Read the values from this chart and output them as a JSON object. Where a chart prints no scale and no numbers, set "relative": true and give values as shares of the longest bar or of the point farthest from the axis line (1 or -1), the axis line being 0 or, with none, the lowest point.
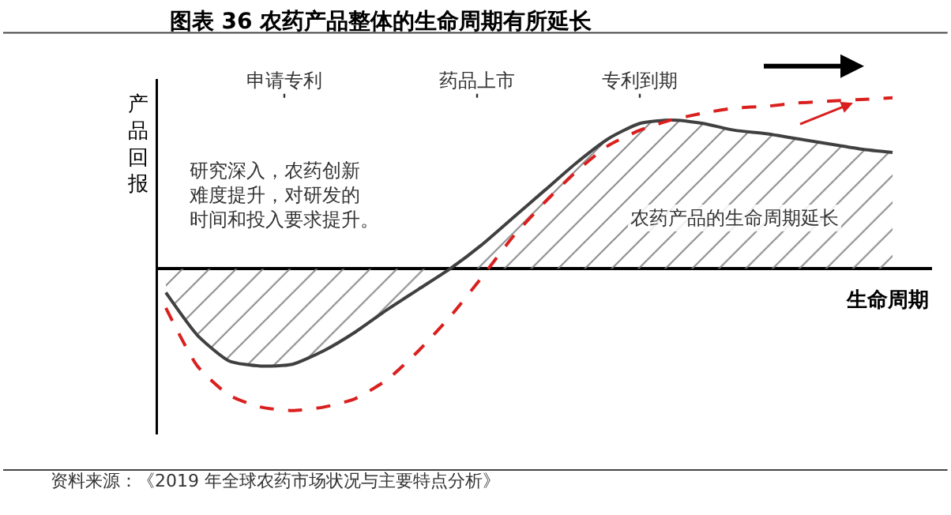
{
  "chart_data": {
    "type": "line",
    "title": "图表 36 农药产品整体的生命周期有所延长",
    "xlabel": "生命周期",
    "ylabel": "产品回报",
    "relative": true,
    "legend": false,
    "grid": false,
    "marker": "none",
    "categories": [
      null,
      null,
      null,
      null,
      null,
      null,
      null,
      null,
      null,
      null,
      null,
      null,
      null,
      null,
      null,
      null,
      null,
      null,
      null,
      null,
      null,
      null,
      null,
      null
    ],
    "series": [
      {
        "type": "area",
        "color": "#404040",
        "line_style": "solid",
        "values": [
          -0.14,
          -0.39,
          -0.54,
          -0.57,
          -0.56,
          -0.48,
          -0.37,
          -0.24,
          -0.12,
          0,
          0.14,
          0.3,
          0.46,
          0.62,
          0.76,
          0.85,
          0.87,
          0.85,
          0.81,
          0.79,
          0.76,
          0.73,
          0.7,
          0.68
        ]
      },
      {
        "type": "line",
        "color": "#d9201e",
        "line_style": "dashed",
        "values": [
          -0.23,
          -0.57,
          -0.74,
          -0.81,
          -0.83,
          -0.81,
          -0.76,
          -0.65,
          -0.48,
          -0.28,
          -0.05,
          0.19,
          0.39,
          0.57,
          0.72,
          0.81,
          0.87,
          0.91,
          0.94,
          0.95,
          0.97,
          0.98,
          0.99,
          1
        ]
      }
    ],
    "annotations": [
      "申请专利",
      "药品上市",
      "专利到期",
      "研究深入，农药创新难度提升，对研发的时间和投入要求提升。",
      "农药产品的生命周期延长",
      "资料来源：《2019 年全球农药市场状况与主要特点分析》"
    ]
  }
}
